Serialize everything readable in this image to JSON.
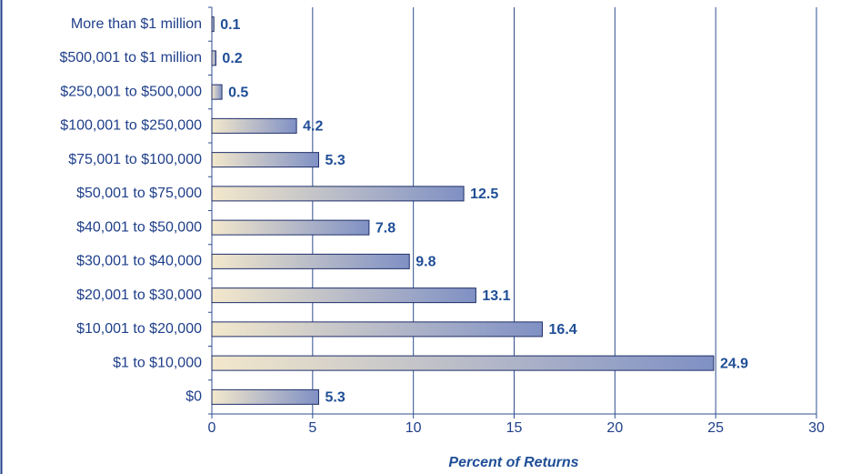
{
  "chart_data": {
    "type": "bar",
    "orientation": "horizontal",
    "xlabel": "Percent of Returns",
    "categories": [
      "More than $1 million",
      "$500,001 to $1 million",
      "$250,001 to $500,000",
      "$100,001 to $250,000",
      "$75,001 to $100,000",
      "$50,001 to $75,000",
      "$40,001 to $50,000",
      "$30,001 to $40,000",
      "$20,001 to $30,000",
      "$10,001 to $20,000",
      "$1 to $10,000",
      "$0"
    ],
    "values": [
      0.1,
      0.2,
      0.5,
      4.2,
      5.3,
      12.5,
      7.8,
      9.8,
      13.1,
      16.4,
      24.9,
      5.3
    ],
    "xlim": [
      0,
      30
    ],
    "xticks": [
      0,
      5,
      10,
      15,
      20,
      25,
      30
    ],
    "grid": true,
    "color": [
      "#f3e8cc",
      "#7f90c4"
    ]
  }
}
